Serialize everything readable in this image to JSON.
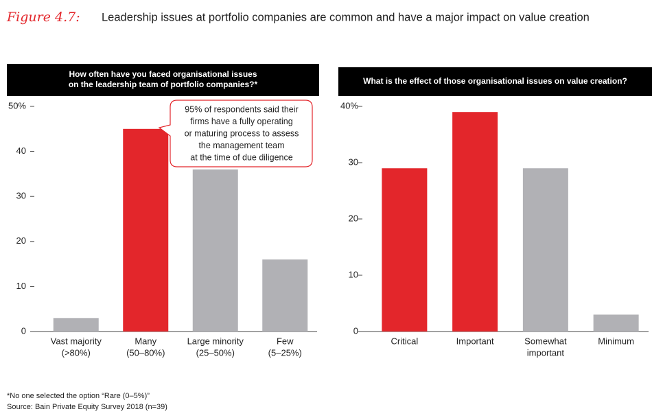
{
  "figure_label": "Figure 4.7:",
  "title": "Leadership issues at portfolio companies are common and have a major impact on value creation",
  "chart_data": [
    {
      "type": "bar",
      "title": [
        "How often have you faced organisational issues",
        "on the leadership team of portfolio companies?*"
      ],
      "categories": [
        [
          "Vast majority",
          "(>80%)"
        ],
        [
          "Many",
          "(50–80%)"
        ],
        [
          "Large minority",
          "(25–50%)"
        ],
        [
          "Few",
          "(5–25%)"
        ]
      ],
      "values": [
        3,
        45,
        36,
        16
      ],
      "colors": [
        "#b1b1b5",
        "#e3262b",
        "#b1b1b5",
        "#b1b1b5"
      ],
      "ylim": [
        0,
        50
      ],
      "yticks": [
        0,
        10,
        20,
        30,
        40,
        {
          "value": 50,
          "label": "50%"
        }
      ],
      "annotation": [
        "95% of respondents said their",
        "firms have a fully operating",
        "or maturing process to assess",
        "the management team",
        "at the time of due diligence"
      ]
    },
    {
      "type": "bar",
      "title": [
        "What is the effect of those organisational issues on value creation?"
      ],
      "categories": [
        [
          "Critical"
        ],
        [
          "Important"
        ],
        [
          "Somewhat",
          "important"
        ],
        [
          "Minimum"
        ]
      ],
      "values": [
        29,
        39,
        29,
        3
      ],
      "colors": [
        "#e3262b",
        "#e3262b",
        "#b1b1b5",
        "#b1b1b5"
      ],
      "ylim": [
        0,
        40
      ],
      "yticks": [
        0,
        10,
        20,
        30,
        {
          "value": 40,
          "label": "40%"
        }
      ]
    }
  ],
  "footnote": "*No one selected the option “Rare (0–5%)”",
  "source": "Source: Bain Private Equity Survey 2018 (n=39)"
}
